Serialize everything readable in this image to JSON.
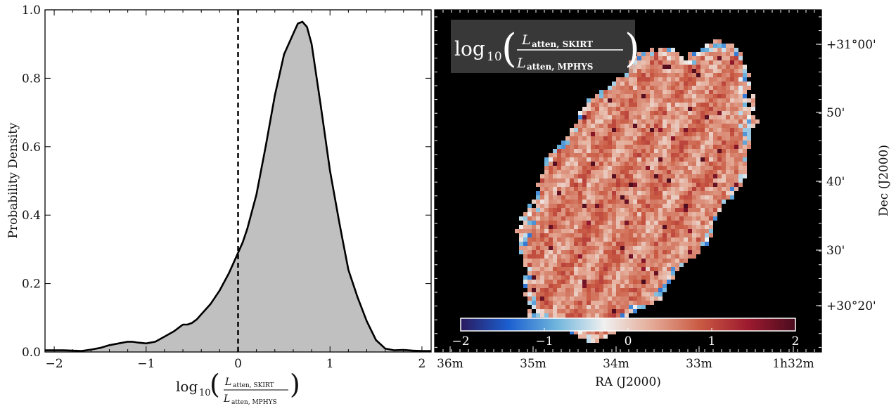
{
  "chart_data": [
    {
      "type": "area",
      "ylabel": "Probability Density",
      "xlabel_prefix": "log",
      "xlabel_sub": "10",
      "xlabel_num": "L",
      "xlabel_num_sub": "atten, SKIRT",
      "xlabel_den": "L",
      "xlabel_den_sub": "atten, MPHYS",
      "xlim": [
        -2.1,
        2.1
      ],
      "ylim": [
        0.0,
        1.0
      ],
      "xticks": [
        -2,
        -1,
        0,
        1,
        2
      ],
      "xtick_labels": [
        "−2",
        "−1",
        "0",
        "1",
        "2"
      ],
      "yticks": [
        0.0,
        0.2,
        0.4,
        0.6,
        0.8,
        1.0
      ],
      "ytick_labels": [
        "0.0",
        "0.2",
        "0.4",
        "0.6",
        "0.8",
        "1.0"
      ],
      "vline_x": 0.0,
      "fill_color": "#c0c0c0",
      "series": [
        {
          "x": [
            -2.1,
            -1.9,
            -1.7,
            -1.6,
            -1.5,
            -1.4,
            -1.3,
            -1.2,
            -1.15,
            -1.1,
            -1.0,
            -0.9,
            -0.8,
            -0.7,
            -0.65,
            -0.6,
            -0.55,
            -0.5,
            -0.45,
            -0.4,
            -0.3,
            -0.2,
            -0.1,
            0.0,
            0.05,
            0.1,
            0.2,
            0.3,
            0.4,
            0.5,
            0.6,
            0.65,
            0.7,
            0.75,
            0.8,
            0.9,
            1.0,
            1.1,
            1.15,
            1.2,
            1.3,
            1.4,
            1.5,
            1.6,
            1.7,
            1.8,
            1.9,
            2.0,
            2.1
          ],
          "y": [
            0.005,
            0.005,
            0.003,
            0.007,
            0.012,
            0.02,
            0.025,
            0.03,
            0.03,
            0.028,
            0.025,
            0.03,
            0.045,
            0.06,
            0.07,
            0.08,
            0.08,
            0.085,
            0.095,
            0.11,
            0.14,
            0.18,
            0.23,
            0.29,
            0.32,
            0.36,
            0.46,
            0.6,
            0.75,
            0.87,
            0.93,
            0.96,
            0.965,
            0.95,
            0.9,
            0.72,
            0.53,
            0.38,
            0.31,
            0.24,
            0.16,
            0.09,
            0.035,
            0.01,
            0.005,
            0.006,
            0.004,
            0.003,
            0.003
          ]
        }
      ]
    },
    {
      "type": "heatmap",
      "title_prefix": "log",
      "title_sub": "10",
      "title_num": "L",
      "title_num_sub": "atten, SKIRT",
      "title_den": "L",
      "title_den_sub": "atten, MPHYS",
      "xlabel": "RA (J2000)",
      "ylabel": "Dec (J2000)",
      "xtick_labels": [
        "36m",
        "35m",
        "34m",
        "33m",
        "1h32m"
      ],
      "ytick_labels": [
        "+31°00'",
        "50'",
        "40'",
        "30'",
        "+30°20'"
      ],
      "colorbar_ticks": [
        -2,
        -1,
        0,
        1,
        2
      ],
      "colorbar_tick_labels": [
        "−2",
        "−1",
        "0",
        "1",
        "2"
      ],
      "colorbar_range": [
        -2,
        2
      ],
      "colormap": [
        "#2a1a5e",
        "#1b5fd0",
        "#6fb5dc",
        "#f0f0f0",
        "#e4aa96",
        "#c95a43",
        "#9e1a2f",
        "#4a0c1e"
      ],
      "background_color": "#000000"
    }
  ]
}
